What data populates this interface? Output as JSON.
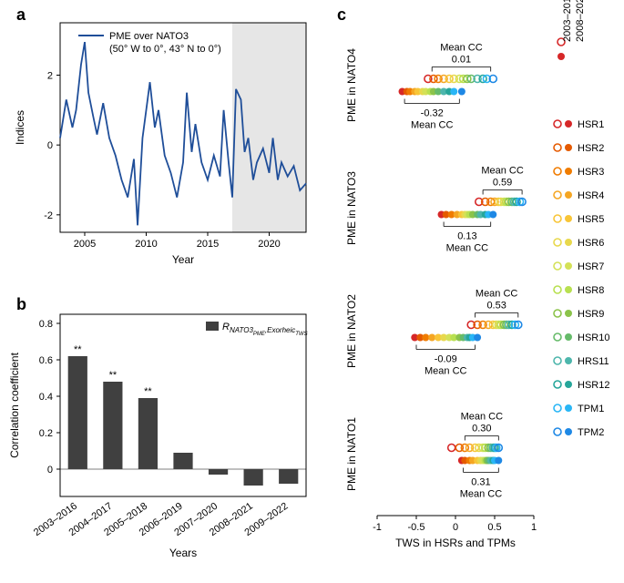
{
  "panels": {
    "a": {
      "label": "a",
      "legend_line1": "PME over NATO3",
      "legend_line2": "(50° W to 0°, 43° N to 0°)",
      "ylabel": "Indices",
      "xlabel": "Year",
      "line_color": "#1f4e99",
      "background_color": "#ffffff",
      "shade_color": "#e6e6e6",
      "shade_start": 2017,
      "shade_end": 2023,
      "xlim": [
        2003,
        2023
      ],
      "ylim": [
        -2.5,
        3.5
      ],
      "xticks": [
        2005,
        2010,
        2015,
        2020
      ],
      "yticks": [
        -2,
        0,
        2
      ],
      "line_width": 1.8,
      "series_x": [
        2003,
        2003.5,
        2004,
        2004.3,
        2004.7,
        2005,
        2005.3,
        2005.7,
        2006,
        2006.5,
        2007,
        2007.5,
        2008,
        2008.5,
        2009,
        2009.3,
        2009.7,
        2010,
        2010.3,
        2010.7,
        2011,
        2011.5,
        2012,
        2012.5,
        2013,
        2013.3,
        2013.7,
        2014,
        2014.5,
        2015,
        2015.5,
        2016,
        2016.3,
        2016.7,
        2017,
        2017.3,
        2017.7,
        2018,
        2018.3,
        2018.7,
        2019,
        2019.5,
        2020,
        2020.3,
        2020.7,
        2021,
        2021.5,
        2022,
        2022.5,
        2023
      ],
      "series_y": [
        0.2,
        1.3,
        0.5,
        1.0,
        2.3,
        2.95,
        1.5,
        0.8,
        0.3,
        1.2,
        0.2,
        -0.3,
        -1.0,
        -1.5,
        -0.4,
        -2.3,
        0.2,
        1.0,
        1.8,
        0.5,
        1.0,
        -0.3,
        -0.8,
        -1.5,
        -0.5,
        1.5,
        -0.2,
        0.6,
        -0.5,
        -1.0,
        -0.3,
        -0.9,
        1.0,
        -0.5,
        -1.5,
        1.6,
        1.3,
        -0.2,
        0.2,
        -1.0,
        -0.5,
        -0.1,
        -0.8,
        0.2,
        -1.0,
        -0.5,
        -0.9,
        -0.6,
        -1.3,
        -1.1
      ]
    },
    "b": {
      "label": "b",
      "ylabel": "Correlation coefficient",
      "xlabel": "Years",
      "legend_text": "R_NATO3_PME,Exorheic_TWS",
      "bar_color": "#404040",
      "xlim": [
        -0.5,
        6.5
      ],
      "ylim": [
        -0.15,
        0.85
      ],
      "yticks": [
        0,
        0.2,
        0.4,
        0.6,
        0.8
      ],
      "categories": [
        "2003–2016",
        "2004–2017",
        "2005–2018",
        "2006–2019",
        "2007–2020",
        "2008–2021",
        "2009–2022"
      ],
      "values": [
        0.62,
        0.48,
        0.39,
        0.09,
        -0.03,
        -0.09,
        -0.08
      ],
      "significance": [
        "**",
        "**",
        "**",
        "",
        "",
        "",
        ""
      ],
      "bar_width": 0.55
    },
    "c": {
      "label": "c",
      "xlabel": "TWS in HSRs and TPMs",
      "xlim": [
        -1.0,
        1.0
      ],
      "xticks": [
        -1.0,
        -0.5,
        0,
        0.5,
        1.0
      ],
      "rows": [
        {
          "ylabel": "PME in NATO1",
          "mean_top": "0.30",
          "mean_bottom": "0.31",
          "top_range": [
            0.12,
            0.55
          ],
          "bottom_range": [
            0.1,
            0.55
          ]
        },
        {
          "ylabel": "PME in NATO2",
          "mean_top": "0.53",
          "mean_bottom": "-0.09",
          "top_range": [
            0.25,
            0.8
          ],
          "bottom_range": [
            -0.5,
            0.25
          ]
        },
        {
          "ylabel": "PME in NATO3",
          "mean_top": "0.59",
          "mean_bottom": "0.13",
          "top_range": [
            0.35,
            0.85
          ],
          "bottom_range": [
            -0.15,
            0.45
          ]
        },
        {
          "ylabel": "PME in NATO4",
          "mean_top": "0.01",
          "mean_bottom": "-0.32",
          "top_range": [
            -0.3,
            0.45
          ],
          "bottom_range": [
            -0.65,
            0.05
          ]
        }
      ],
      "mean_cc_label": "Mean CC",
      "legend_period_top": "2003–2016",
      "legend_period_bottom": "2008–2021",
      "series_colors": [
        {
          "name": "HSR1",
          "color": "#d62728"
        },
        {
          "name": "HSR2",
          "color": "#e55a00"
        },
        {
          "name": "HSR3",
          "color": "#f07c00"
        },
        {
          "name": "HSR4",
          "color": "#f5a623"
        },
        {
          "name": "HSR5",
          "color": "#f8c537"
        },
        {
          "name": "HSR6",
          "color": "#e8d84c"
        },
        {
          "name": "HSR7",
          "color": "#d4e157"
        },
        {
          "name": "HSR8",
          "color": "#b8e050"
        },
        {
          "name": "HSR9",
          "color": "#8bc34a"
        },
        {
          "name": "HSR10",
          "color": "#66bb6a"
        },
        {
          "name": "HRS11",
          "color": "#4db6ac"
        },
        {
          "name": "HSR12",
          "color": "#26a69a"
        },
        {
          "name": "TPM1",
          "color": "#29b6f6"
        },
        {
          "name": "TPM2",
          "color": "#1e88e5"
        }
      ],
      "points": {
        "NATO1_open": [
          -0.05,
          0.05,
          0.12,
          0.18,
          0.25,
          0.3,
          0.35,
          0.38,
          0.42,
          0.45,
          0.48,
          0.5,
          0.52,
          0.55
        ],
        "NATO1_filled": [
          0.08,
          0.12,
          0.18,
          0.22,
          0.28,
          0.32,
          0.35,
          0.38,
          0.4,
          0.42,
          0.45,
          0.48,
          0.5,
          0.55
        ],
        "NATO2_open": [
          0.2,
          0.28,
          0.35,
          0.42,
          0.48,
          0.52,
          0.55,
          0.58,
          0.62,
          0.65,
          0.68,
          0.72,
          0.76,
          0.8
        ],
        "NATO2_filled": [
          -0.52,
          -0.45,
          -0.38,
          -0.3,
          -0.22,
          -0.15,
          -0.08,
          -0.02,
          0.05,
          0.1,
          0.15,
          0.18,
          0.22,
          0.28
        ],
        "NATO3_open": [
          0.3,
          0.38,
          0.45,
          0.5,
          0.55,
          0.58,
          0.62,
          0.65,
          0.68,
          0.72,
          0.75,
          0.78,
          0.82,
          0.85
        ],
        "NATO3_filled": [
          -0.18,
          -0.12,
          -0.05,
          0.02,
          0.08,
          0.12,
          0.15,
          0.18,
          0.22,
          0.28,
          0.32,
          0.38,
          0.42,
          0.48
        ],
        "NATO4_open": [
          -0.35,
          -0.28,
          -0.22,
          -0.15,
          -0.08,
          -0.02,
          0.05,
          0.1,
          0.15,
          0.2,
          0.28,
          0.35,
          0.4,
          0.48
        ],
        "NATO4_filled": [
          -0.68,
          -0.62,
          -0.58,
          -0.52,
          -0.48,
          -0.42,
          -0.38,
          -0.32,
          -0.28,
          -0.22,
          -0.15,
          -0.08,
          -0.02,
          0.08
        ]
      }
    }
  }
}
